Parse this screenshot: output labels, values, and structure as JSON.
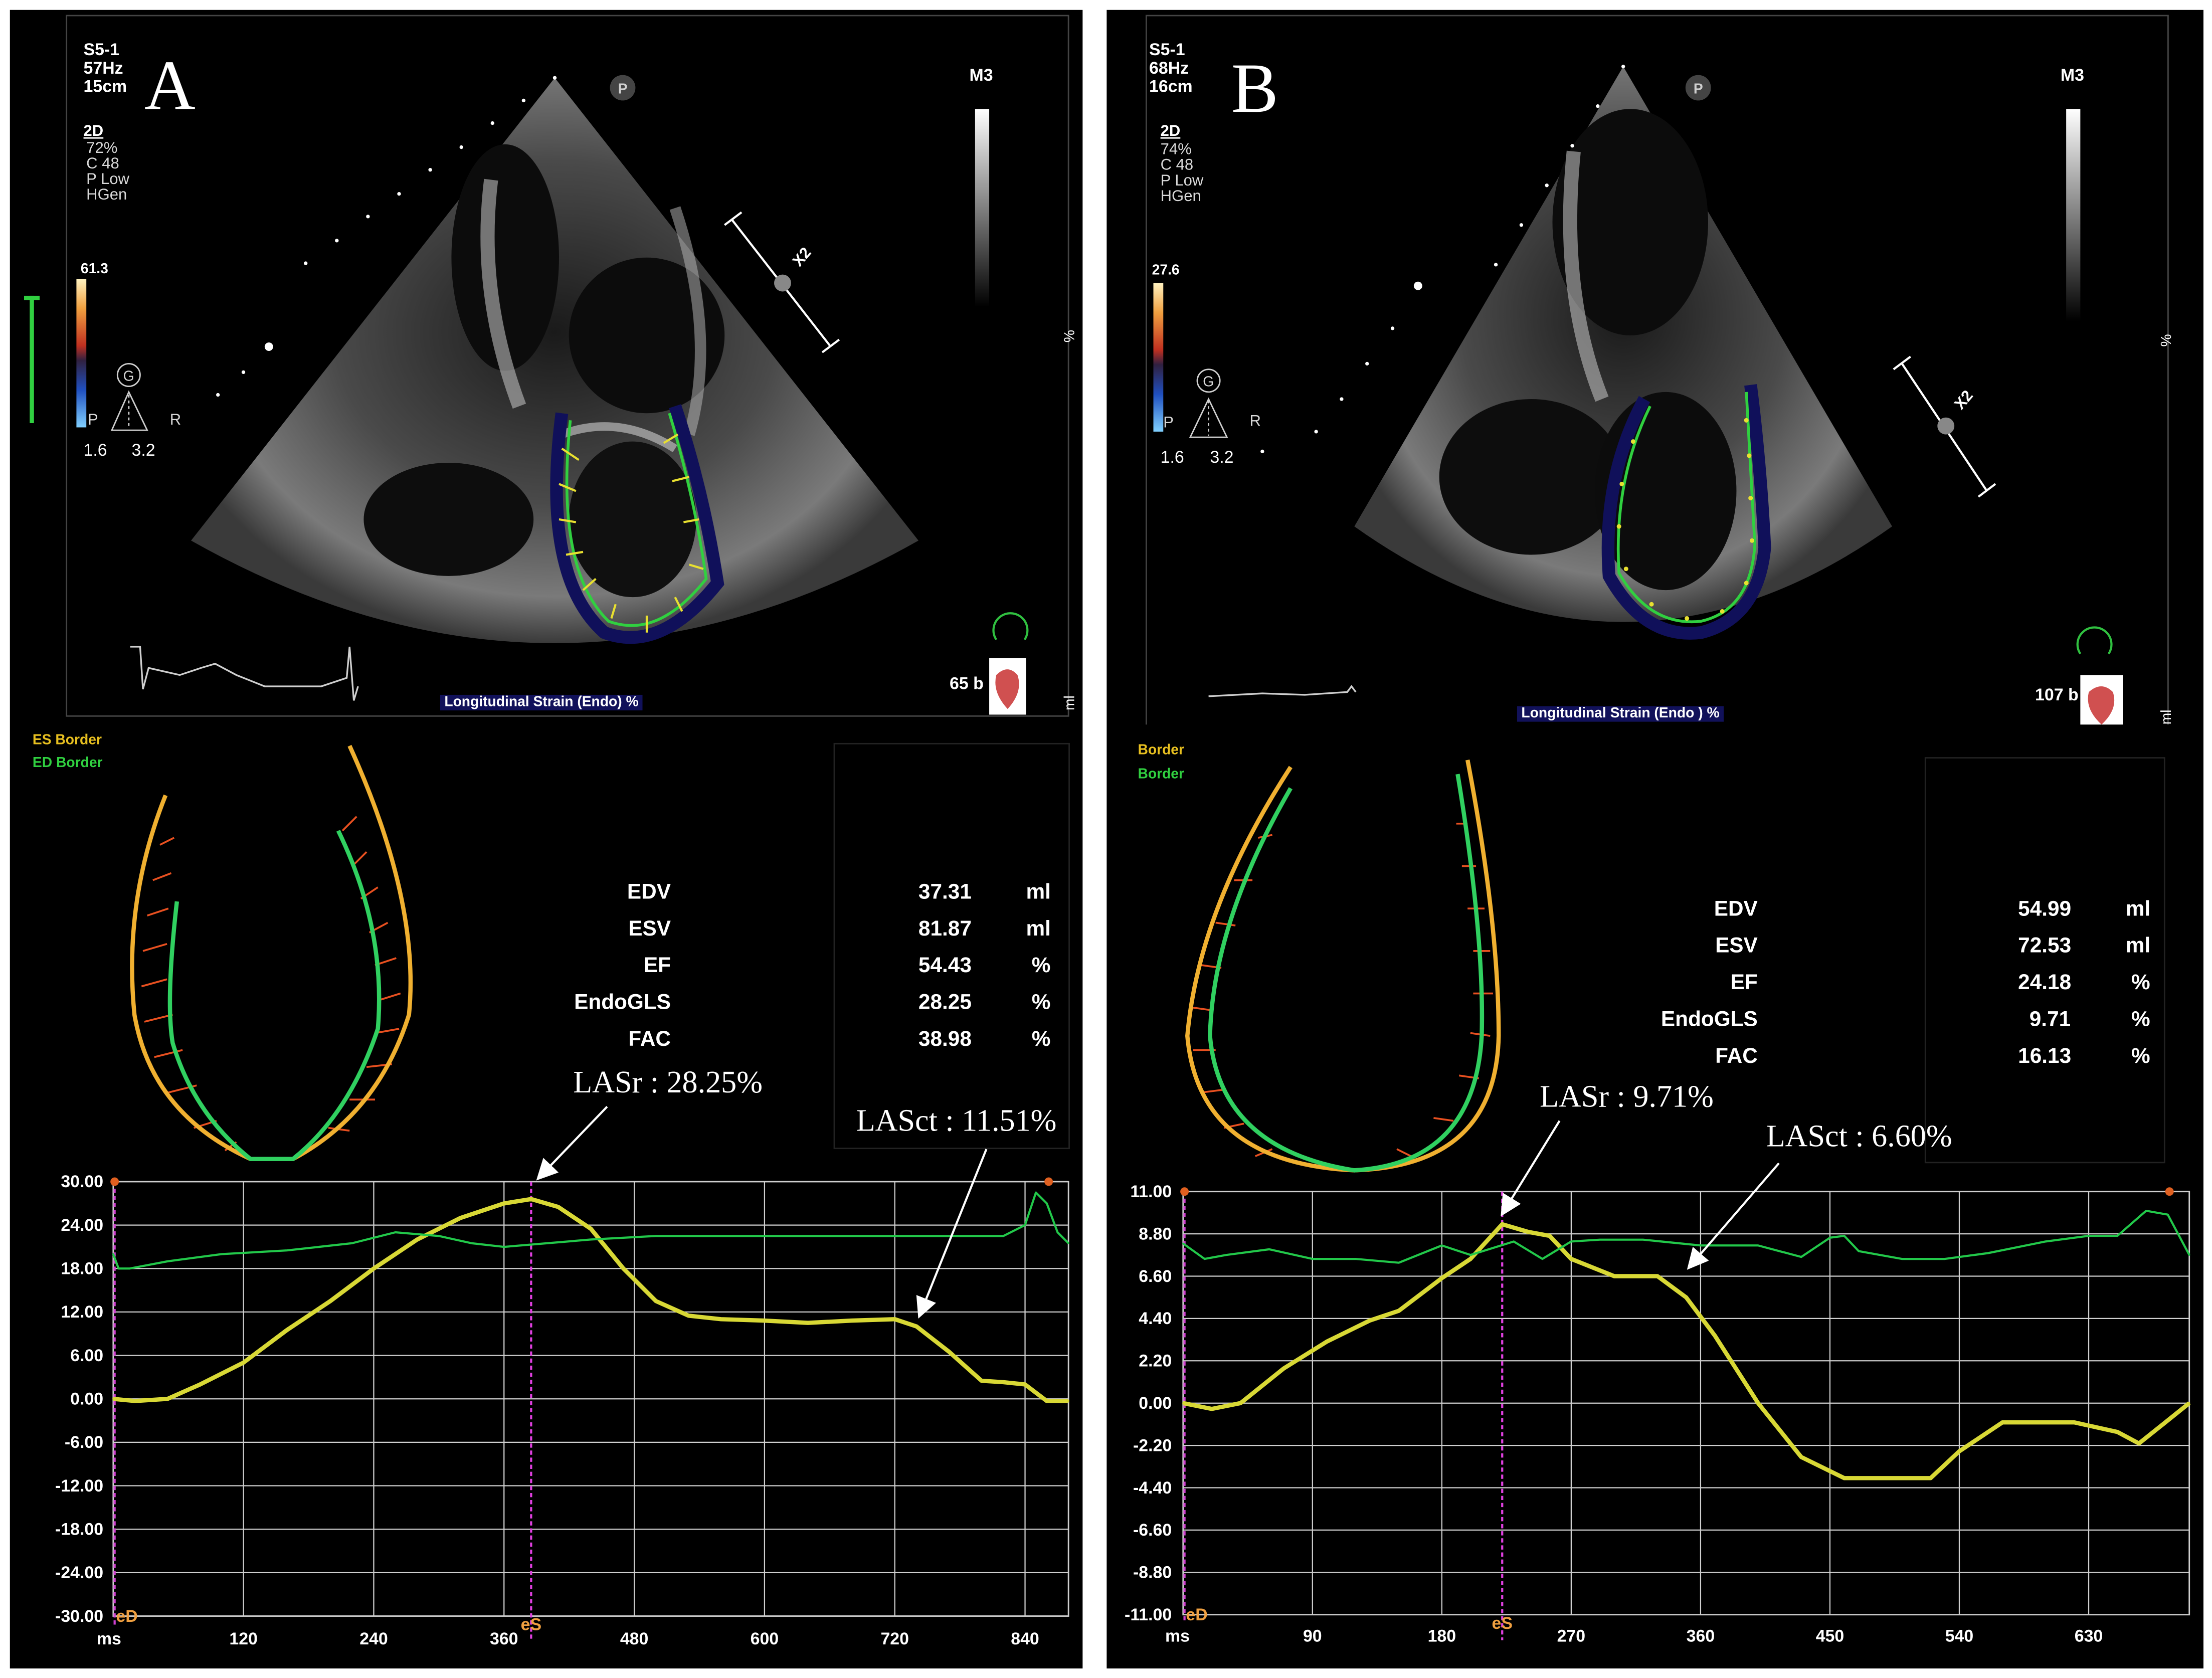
{
  "panels": [
    {
      "letter": "A",
      "probe": "S5-1",
      "frame_rate": "57Hz",
      "depth": "15cm",
      "mode": "2D",
      "settings": [
        "72%",
        "C 48",
        "P Low",
        "HGen"
      ],
      "color_max": "61.3",
      "scale_low": "1.6",
      "scale_high": "3.2",
      "map_letters": {
        "g": "G",
        "p": "P",
        "r": "R"
      },
      "probe_marker": "P",
      "right_label": "M3",
      "x2": "X2",
      "bpm": "65 b",
      "strain_label": "Longitudinal Strain (Endo) %",
      "side_units": {
        "percent": "%",
        "ml": "ml"
      },
      "es_border": "ES Border",
      "ed_border": "ED Border",
      "measurements": [
        {
          "label": "EDV",
          "value": "37.31",
          "unit": "ml"
        },
        {
          "label": "ESV",
          "value": "81.87",
          "unit": "ml"
        },
        {
          "label": "EF",
          "value": "54.43",
          "unit": "%"
        },
        {
          "label": "EndoGLS",
          "value": "28.25",
          "unit": "%"
        },
        {
          "label": "FAC",
          "value": "38.98",
          "unit": "%"
        }
      ],
      "annotations": {
        "lasr": "LASr : 28.25%",
        "lasct": "LASct : 11.51%"
      },
      "markers": {
        "ed": "eD",
        "es": "eS"
      },
      "x_unit": "ms",
      "chart_data": {
        "type": "line",
        "xlabel": "ms",
        "ylabel": "",
        "x_ticks": [
          "120",
          "240",
          "360",
          "480",
          "600",
          "720",
          "840"
        ],
        "y_ticks": [
          "30.00",
          "24.00",
          "18.00",
          "12.00",
          "6.00",
          "0.00",
          "-6.00",
          "-12.00",
          "-18.00",
          "-24.00",
          "-30.00"
        ],
        "xlim": [
          0,
          880
        ],
        "ylim": [
          -30,
          30
        ],
        "es_x": 385,
        "series": [
          {
            "color": "#d8d835",
            "x": [
              0,
              20,
              50,
              80,
              120,
              160,
              200,
              240,
              280,
              320,
              360,
              385,
              410,
              440,
              470,
              500,
              530,
              560,
              600,
              640,
              680,
              720,
              740,
              770,
              800,
              820,
              840,
              860,
              880
            ],
            "y": [
              0,
              -0.3,
              0,
              2,
              5,
              9.5,
              13.5,
              18,
              22,
              25,
              27,
              27.6,
              26.5,
              23.5,
              18,
              13.5,
              11.5,
              11,
              10.8,
              10.5,
              10.8,
              11,
              10,
              6.5,
              2.5,
              2.3,
              2,
              -0.3,
              -0.3
            ]
          },
          {
            "color": "#22c84a",
            "x": [
              0,
              5,
              15,
              50,
              100,
              160,
              220,
              260,
              300,
              330,
              360,
              400,
              440,
              500,
              560,
              620,
              680,
              720,
              760,
              790,
              820,
              840,
              850,
              860,
              870,
              880
            ],
            "y": [
              20,
              18,
              18,
              19,
              20,
              20.5,
              21.5,
              23,
              22.5,
              21.5,
              21,
              21.5,
              22,
              22.5,
              22.5,
              22.5,
              22.5,
              22.5,
              22.5,
              22.5,
              22.5,
              24,
              28.5,
              27,
              23,
              21.5
            ]
          }
        ]
      }
    },
    {
      "letter": "B",
      "probe": "S5-1",
      "frame_rate": "68Hz",
      "depth": "16cm",
      "mode": "2D",
      "settings": [
        "74%",
        "C 48",
        "P Low",
        "HGen"
      ],
      "color_max": "27.6",
      "scale_low": "1.6",
      "scale_high": "3.2",
      "map_letters": {
        "g": "G",
        "p": "P",
        "r": "R"
      },
      "probe_marker": "P",
      "right_label": "M3",
      "x2": "X2",
      "bpm": "107 b",
      "strain_label": "Longitudinal Strain (Endo ) %",
      "side_units": {
        "percent": "%",
        "ml": "ml"
      },
      "es_border": "Border",
      "ed_border": "Border",
      "measurements": [
        {
          "label": "EDV",
          "value": "54.99",
          "unit": "ml"
        },
        {
          "label": "ESV",
          "value": "72.53",
          "unit": "ml"
        },
        {
          "label": "EF",
          "value": "24.18",
          "unit": "%"
        },
        {
          "label": "EndoGLS",
          "value": "9.71",
          "unit": "%"
        },
        {
          "label": "FAC",
          "value": "16.13",
          "unit": "%"
        }
      ],
      "annotations": {
        "lasr": "LASr : 9.71%",
        "lasct": "LASct : 6.60%"
      },
      "markers": {
        "ed": "eD",
        "es": "eS"
      },
      "x_unit": "ms",
      "chart_data": {
        "type": "line",
        "xlabel": "ms",
        "ylabel": "",
        "x_ticks": [
          "90",
          "180",
          "270",
          "360",
          "450",
          "540",
          "630"
        ],
        "y_ticks": [
          "11.00",
          "8.80",
          "6.60",
          "4.40",
          "2.20",
          "0.00",
          "-2.20",
          "-4.40",
          "-6.60",
          "-8.80",
          "-11.00"
        ],
        "xlim": [
          0,
          700
        ],
        "ylim": [
          -11,
          11
        ],
        "es_x": 222,
        "series": [
          {
            "color": "#d8d835",
            "x": [
              0,
              20,
              40,
              70,
              100,
              130,
              150,
              180,
              200,
              222,
              240,
              255,
              270,
              300,
              330,
              350,
              370,
              400,
              430,
              460,
              490,
              520,
              540,
              570,
              600,
              620,
              650,
              665,
              680,
              700
            ],
            "y": [
              0,
              -0.3,
              0,
              1.8,
              3.2,
              4.3,
              4.8,
              6.5,
              7.5,
              9.3,
              8.9,
              8.7,
              7.5,
              6.6,
              6.6,
              5.5,
              3.5,
              0,
              -2.8,
              -3.9,
              -3.9,
              -3.9,
              -2.5,
              -1,
              -1,
              -1,
              -1.5,
              -2.1,
              -1.2,
              0
            ]
          },
          {
            "color": "#22c84a",
            "x": [
              0,
              15,
              30,
              60,
              90,
              120,
              150,
              180,
              200,
              230,
              250,
              270,
              290,
              320,
              360,
              400,
              430,
              450,
              460,
              470,
              500,
              530,
              560,
              600,
              630,
              650,
              670,
              685,
              700
            ],
            "y": [
              8.3,
              7.5,
              7.7,
              8,
              7.5,
              7.5,
              7.3,
              8.2,
              7.7,
              8.4,
              7.5,
              8.4,
              8.5,
              8.5,
              8.2,
              8.2,
              7.6,
              8.6,
              8.7,
              7.9,
              7.5,
              7.5,
              7.8,
              8.4,
              8.7,
              8.7,
              10,
              9.8,
              7.7
            ]
          }
        ]
      }
    }
  ]
}
